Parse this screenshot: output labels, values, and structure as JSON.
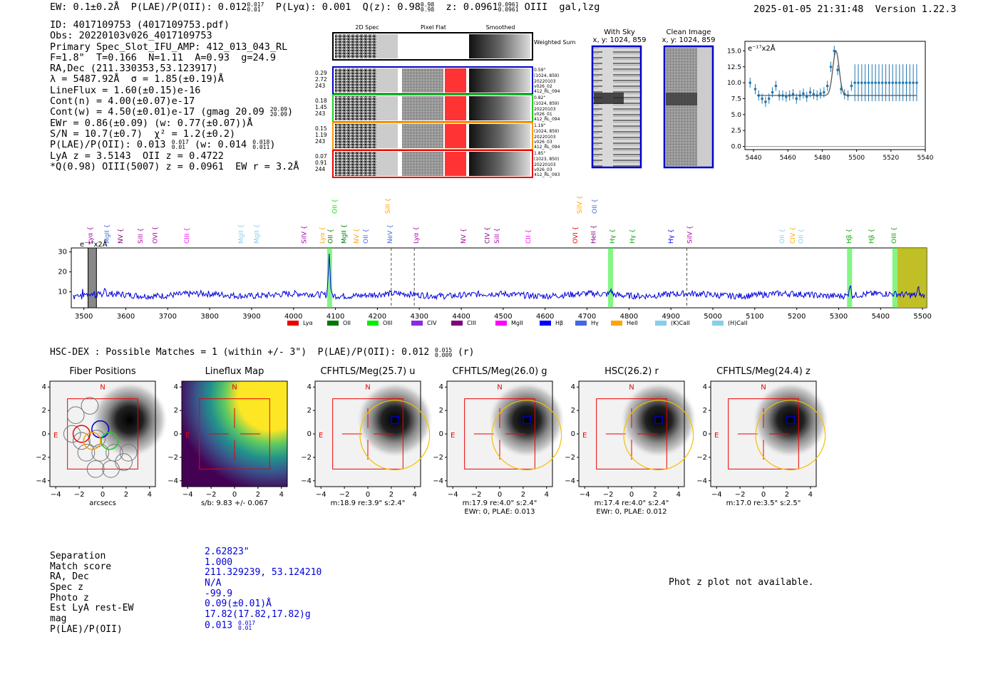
{
  "header": {
    "summary_line": "EW: 0.1±0.2Å  P(LAE)/P(OII): 0.012",
    "plae_hi": "0.017",
    "plae_lo": "0.01",
    "plya": "P(Lyα): 0.001",
    "qz": "Q(z): 0.98",
    "qz_hi": "0.98",
    "qz_lo": "0.98",
    "z": "z: 0.0961",
    "z_hi": "0.0961",
    "z_lo": "0.0961",
    "line_id": "OIII  gal,lzg",
    "timestamp": "2025-01-05 21:31:48  Version 1.22.3"
  },
  "info": {
    "id": "ID: 4017109753 (4017109753.pdf)",
    "obs": "Obs: 20220103v026_4017109753",
    "primary": "Primary Spec_Slot_IFU_AMP: 412_013_043_RL",
    "params": "F=1.8\"  T=0.166  N=1.11  A=0.93  g=24.9",
    "radec": "RA,Dec (211.330353,53.123917)",
    "lambda": "λ = 5487.92Å  σ = 1.85(±0.19)Å",
    "lineflux": "LineFlux = 1.60(±0.15)e-16",
    "contn": "Cont(n) = 4.00(±0.07)e-17",
    "contw": "Cont(w) = 4.50(±0.01)e-17 (gmag 20.09",
    "gmag_hi": "20.09",
    "gmag_lo": "20.09",
    "ewr": "EWr = 0.86(±0.09) (w: 0.77(±0.07))Å",
    "sn": "S/N = 10.7(±0.7)  χ² = 1.2(±0.2)",
    "plae": "P(LAE)/P(OII): 0.013",
    "plae_hi": "0.017",
    "plae_lo": "0.01",
    "plae_w": "(w: 0.014",
    "plae_w_hi": "0.018",
    "plae_w_lo": "0.011",
    "lya_z": "LyA z = 3.5143  OII z = 0.4722",
    "q_line": "*Q(0.98) OIII(5007) z = 0.0961  EW r = 3.2Å"
  },
  "cutouts": {
    "col_2d": "2D Spec",
    "col_flat": "Pixel Flat",
    "col_smooth": "Smoothed",
    "weighted_sum": "Weighted Sum",
    "fibers": [
      {
        "a": "0.29",
        "b": "2.72",
        "c": "243",
        "dist": "0.59\"",
        "xy": "(1024, 859)",
        "d1": "20220103",
        "d2": "v026_02",
        "d3": "412_RL_094",
        "color": "#0000cc"
      },
      {
        "a": "0.18",
        "b": "1.45",
        "c": "243",
        "dist": "0.82\"",
        "xy": "(1024, 859)",
        "d1": "20220103",
        "d2": "v026_01",
        "d3": "412_RL_094",
        "color": "#22cc22"
      },
      {
        "a": "0.15",
        "b": "1.19",
        "c": "243",
        "dist": "1.19\"",
        "xy": "(1024, 859)",
        "d1": "20220103",
        "d2": "v026_03",
        "d3": "412_RL_094",
        "color": "#ff9900"
      },
      {
        "a": "0.07",
        "b": "0.91",
        "c": "244",
        "dist": "1.85\"",
        "xy": "(1023, 850)",
        "d1": "20220103",
        "d2": "v026_03",
        "d3": "412_RL_093",
        "color": "#ee0000"
      }
    ],
    "with_sky": "With Sky",
    "with_sky_xy": "x, y: 1024, 859",
    "clean": "Clean Image",
    "clean_xy": "x, y: 1024, 859"
  },
  "zoom_chart": {
    "unit_label": "e⁻¹⁷x2Å",
    "yticks": [
      "0.0",
      "2.5",
      "5.0",
      "7.5",
      "10.0",
      "12.5",
      "15.0"
    ],
    "xticks": [
      "5440",
      "5460",
      "5480",
      "5500",
      "5520",
      "5540"
    ]
  },
  "spectrum": {
    "unit_label": "e⁻¹⁷x2Å",
    "yticks": [
      "10",
      "20",
      "30"
    ],
    "xticks": [
      "3500",
      "3600",
      "3700",
      "3800",
      "3900",
      "4000",
      "4100",
      "4200",
      "4300",
      "4400",
      "4500",
      "4600",
      "4700",
      "4800",
      "4900",
      "5000",
      "5100",
      "5200",
      "5300",
      "5400",
      "5500"
    ],
    "legend": [
      {
        "label": "Lyα",
        "color": "#ee0000"
      },
      {
        "label": "OII",
        "color": "#007700"
      },
      {
        "label": "OIII",
        "color": "#00ee00"
      },
      {
        "label": "CIV",
        "color": "#8a2be2"
      },
      {
        "label": "CIII",
        "color": "#800080"
      },
      {
        "label": "MgII",
        "color": "#ff00ff"
      },
      {
        "label": "Hβ",
        "color": "#0000ff"
      },
      {
        "label": "Hγ",
        "color": "#4169e1"
      },
      {
        "label": "HeII",
        "color": "#ffa500"
      },
      {
        "label": "(K)CaII",
        "color": "#87ceeb"
      },
      {
        "label": "(H)CaII",
        "color": "#87ceeb"
      }
    ],
    "line_labels": [
      {
        "t": "Lyα",
        "w": 3515,
        "c": "#aa00aa"
      },
      {
        "t": "MgII",
        "w": 3555,
        "c": "#4169e1"
      },
      {
        "t": "NV",
        "w": 3587,
        "c": "#800080"
      },
      {
        "t": "SiII",
        "w": 3635,
        "c": "#aa00aa"
      },
      {
        "t": "OVI",
        "w": 3670,
        "c": "#aa00aa"
      },
      {
        "t": "CIII",
        "w": 3745,
        "c": "#ff00ff"
      },
      {
        "t": "MgII",
        "w": 3875,
        "c": "#87ceeb"
      },
      {
        "t": "MgII",
        "w": 3912,
        "c": "#87ceeb"
      },
      {
        "t": "SiIV",
        "w": 4025,
        "c": "#aa00aa"
      },
      {
        "t": "Lyα",
        "w": 4068,
        "c": "#ffa500"
      },
      {
        "t": "OII",
        "w": 4088,
        "c": "#007700"
      },
      {
        "t": "MgII",
        "w": 4120,
        "c": "#007700"
      },
      {
        "t": "NV",
        "w": 4150,
        "c": "#ffa500"
      },
      {
        "t": "OII",
        "w": 4172,
        "c": "#4169e1"
      },
      {
        "t": "NeV",
        "w": 4230,
        "c": "#4169e1"
      },
      {
        "t": "Lyα",
        "w": 4292,
        "c": "#aa00aa"
      },
      {
        "t": "NV",
        "w": 4405,
        "c": "#aa00aa"
      },
      {
        "t": "CIV",
        "w": 4462,
        "c": "#800080"
      },
      {
        "t": "SiII",
        "w": 4485,
        "c": "#aa00aa"
      },
      {
        "t": "CII",
        "w": 4560,
        "c": "#ff00ff"
      },
      {
        "t": "OVI",
        "w": 4672,
        "c": "#ee0000"
      },
      {
        "t": "HeII",
        "w": 4715,
        "c": "#800080"
      },
      {
        "t": "Hγ",
        "w": 4760,
        "c": "#00aa00"
      },
      {
        "t": "Hγ",
        "w": 4808,
        "c": "#00aa00"
      },
      {
        "t": "Hγ",
        "w": 4900,
        "c": "#0000ff"
      },
      {
        "t": "SiIV",
        "w": 4945,
        "c": "#aa00aa"
      },
      {
        "t": "OII",
        "w": 5165,
        "c": "#87ceeb"
      },
      {
        "t": "CIV",
        "w": 5190,
        "c": "#ffa500"
      },
      {
        "t": "OII",
        "w": 5210,
        "c": "#87ceeb"
      },
      {
        "t": "Hβ",
        "w": 5325,
        "c": "#00aa00"
      },
      {
        "t": "Hβ",
        "w": 5378,
        "c": "#00aa00"
      },
      {
        "t": "OIII",
        "w": 5432,
        "c": "#00aa00"
      }
    ],
    "upper_labels": [
      {
        "t": "OII",
        "w": 4098,
        "c": "#00ee00"
      },
      {
        "t": "SiII",
        "w": 4225,
        "c": "#ffa500"
      },
      {
        "t": "SiIV",
        "w": 4682,
        "c": "#ffa500"
      },
      {
        "t": "OII",
        "w": 4718,
        "c": "#4169e1"
      }
    ]
  },
  "hsc": {
    "line": "HSC-DEX : Possible Matches = 1 (within +/- 3\")  P(LAE)/P(OII): 0.012",
    "hi": "0.015",
    "lo": "0.009",
    "band": "(r)"
  },
  "stamps": [
    {
      "title": "Fiber Positions",
      "cap1": "arcsecs",
      "cap2": ""
    },
    {
      "title": "Lineflux Map",
      "cap1": "s/b: 9.83 +/- 0.067",
      "cap2": ""
    },
    {
      "title": "CFHTLS/Meg(25.7) u",
      "cap1": "m:18.9  re:3.9\"  s:2.4\"",
      "cap2": ""
    },
    {
      "title": "CFHTLS/Meg(26.0) g",
      "cap1": "m:17.9  re:4.0\"  s:2.4\"",
      "cap2": "EWr: 0, PLAE: 0.013"
    },
    {
      "title": "HSC(26.2) r",
      "cap1": "m:17.4  re:4.0\"  s:2.4\"",
      "cap2": "EWr: 0, PLAE: 0.012"
    },
    {
      "title": "CFHTLS/Meg(24.4) z",
      "cap1": "m:17.0  re:3.5\"  s:2.5\"",
      "cap2": ""
    }
  ],
  "stamp_axis": {
    "ticks": [
      "−4",
      "−2",
      "0",
      "2",
      "4"
    ],
    "north": "N",
    "east": "E"
  },
  "match": {
    "labels": [
      "Separation",
      "Match score",
      "RA, Dec",
      "Spec z",
      "Photo z",
      "Est LyA rest-EW",
      "mag",
      "P(LAE)/P(OII)"
    ],
    "values": [
      "2.62823\"",
      "1.000",
      "211.329239, 53.124210",
      "N/A",
      "-99.9",
      "0.09(±0.01)Å",
      "17.82(17.82,17.82)g",
      "0.013"
    ],
    "plae_hi": "0.017",
    "plae_lo": "0.01"
  },
  "photz_msg": "Phot z plot not available.",
  "chart_data": [
    {
      "type": "scatter",
      "title": "",
      "ylabel": "e-17x2Å",
      "xlim": [
        5435,
        5540
      ],
      "ylim": [
        -0.5,
        16.5
      ],
      "x": [
        5438,
        5441,
        5443,
        5445,
        5447,
        5449,
        5451,
        5453,
        5455,
        5457,
        5459,
        5461,
        5463,
        5465,
        5467,
        5469,
        5471,
        5473,
        5475,
        5477,
        5479,
        5481,
        5483,
        5485,
        5487,
        5489,
        5491,
        5493,
        5495,
        5497,
        5499,
        5501,
        5503,
        5505,
        5507,
        5509,
        5511,
        5513,
        5515,
        5517,
        5519,
        5521,
        5523,
        5525,
        5527,
        5529,
        5531,
        5533,
        5535
      ],
      "y": [
        10.0,
        9.0,
        8.0,
        7.5,
        7.0,
        7.5,
        8.5,
        9.5,
        8.0,
        8.0,
        7.8,
        8.0,
        8.2,
        7.5,
        8.0,
        8.3,
        7.8,
        8.5,
        8.2,
        8.0,
        8.3,
        8.5,
        9.5,
        12.5,
        15.0,
        12.0,
        9.0,
        8.2,
        8.0,
        9.5,
        10.0,
        10.0,
        10.0,
        10.0,
        10.0,
        10.0,
        10.0,
        10.0,
        10.0,
        10.0,
        10.0,
        10.0,
        10.0,
        10.0,
        10.0,
        10.0,
        10.0,
        10.0,
        10.0
      ],
      "fit_baseline": 8.0,
      "fit_peak": 15.0,
      "fit_center": 5488,
      "fit_sigma": 1.85
    },
    {
      "type": "line",
      "title": "",
      "xlabel": "",
      "ylabel": "e-17x2Å",
      "xlim": [
        3470,
        5510
      ],
      "ylim": [
        2,
        32
      ],
      "noise_level": 8.5,
      "emission_peaks": [
        {
          "x": 4085,
          "y": 29
        },
        {
          "x": 4757,
          "y": 11
        },
        {
          "x": 5327,
          "y": 14
        },
        {
          "x": 5490,
          "y": 12
        }
      ]
    }
  ]
}
